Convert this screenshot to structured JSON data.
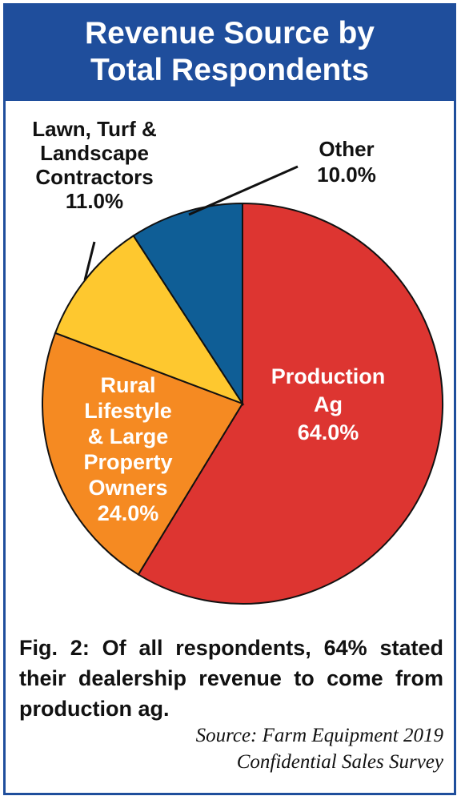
{
  "chart_data": {
    "type": "pie",
    "title_lines": [
      "Revenue Source by",
      "Total Respondents"
    ],
    "slices": [
      {
        "label_lines": [
          "Production",
          "Ag"
        ],
        "pct_text": "64.0%",
        "value": 64.0,
        "color": "#dd3531",
        "label_color": "#ffffff"
      },
      {
        "label_lines": [
          "Rural",
          "Lifestyle",
          "& Large",
          "Property",
          "Owners"
        ],
        "pct_text": "24.0%",
        "value": 24.0,
        "color": "#f58a22",
        "label_color": "#ffffff"
      },
      {
        "label_lines": [
          "Lawn, Turf &",
          "Landscape",
          "Contractors"
        ],
        "pct_text": "11.0%",
        "value": 11.0,
        "color": "#fec82f",
        "label_color": "#111111"
      },
      {
        "label_lines": [
          "Other"
        ],
        "pct_text": "10.0%",
        "value": 10.0,
        "color": "#0f5e96",
        "label_color": "#111111"
      }
    ],
    "legend": "none"
  },
  "caption": "Fig. 2: Of all respondents, 64% stated their dealership revenue to come from production ag.",
  "source_lines": [
    "Source: Farm Equipment 2019",
    "Confidential Sales Survey"
  ],
  "colors": {
    "title_bar": "#1f4e9c",
    "border": "#1f4e9c"
  }
}
